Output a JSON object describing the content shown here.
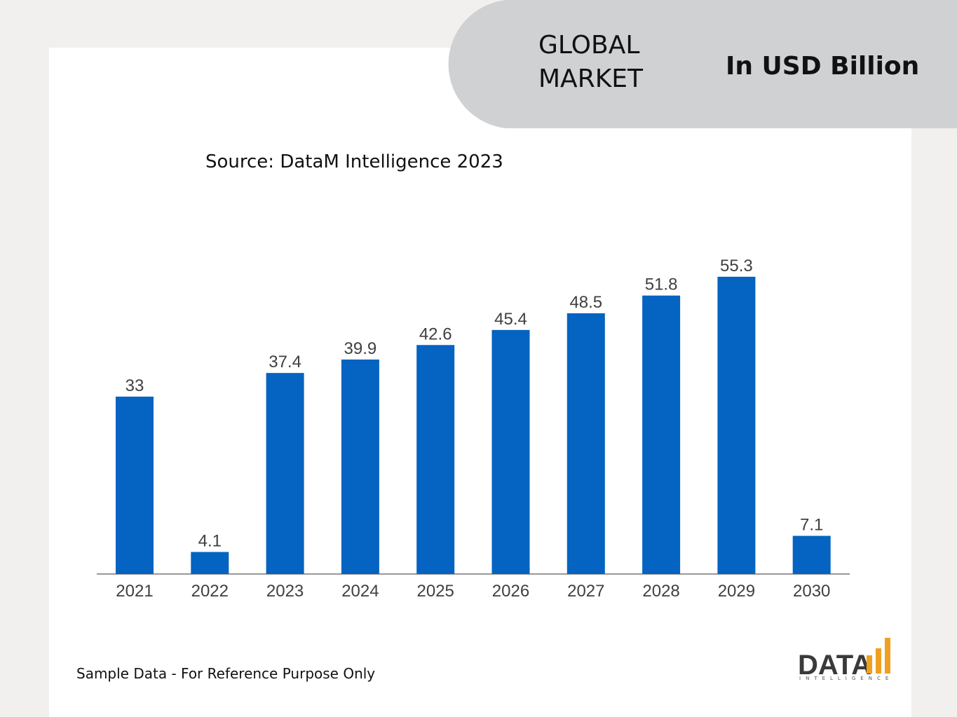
{
  "header": {
    "title_lines": [
      "GLOBAL",
      "MARKET"
    ],
    "unit": "In USD Billion"
  },
  "chart_data": {
    "type": "bar",
    "source": "Source: DataM Intelligence 2023",
    "categories": [
      "2021",
      "2022",
      "2023",
      "2024",
      "2025",
      "2026",
      "2027",
      "2028",
      "2029",
      "2030"
    ],
    "values": [
      33,
      4.1,
      37.4,
      39.9,
      42.6,
      45.4,
      48.5,
      51.8,
      55.3,
      7.1
    ],
    "color": "#0563c1"
  },
  "footer": {
    "note": "Sample Data - For Reference Purpose Only"
  },
  "logo": {
    "text": "DATA",
    "subtext": "INTELLIGENCE"
  }
}
